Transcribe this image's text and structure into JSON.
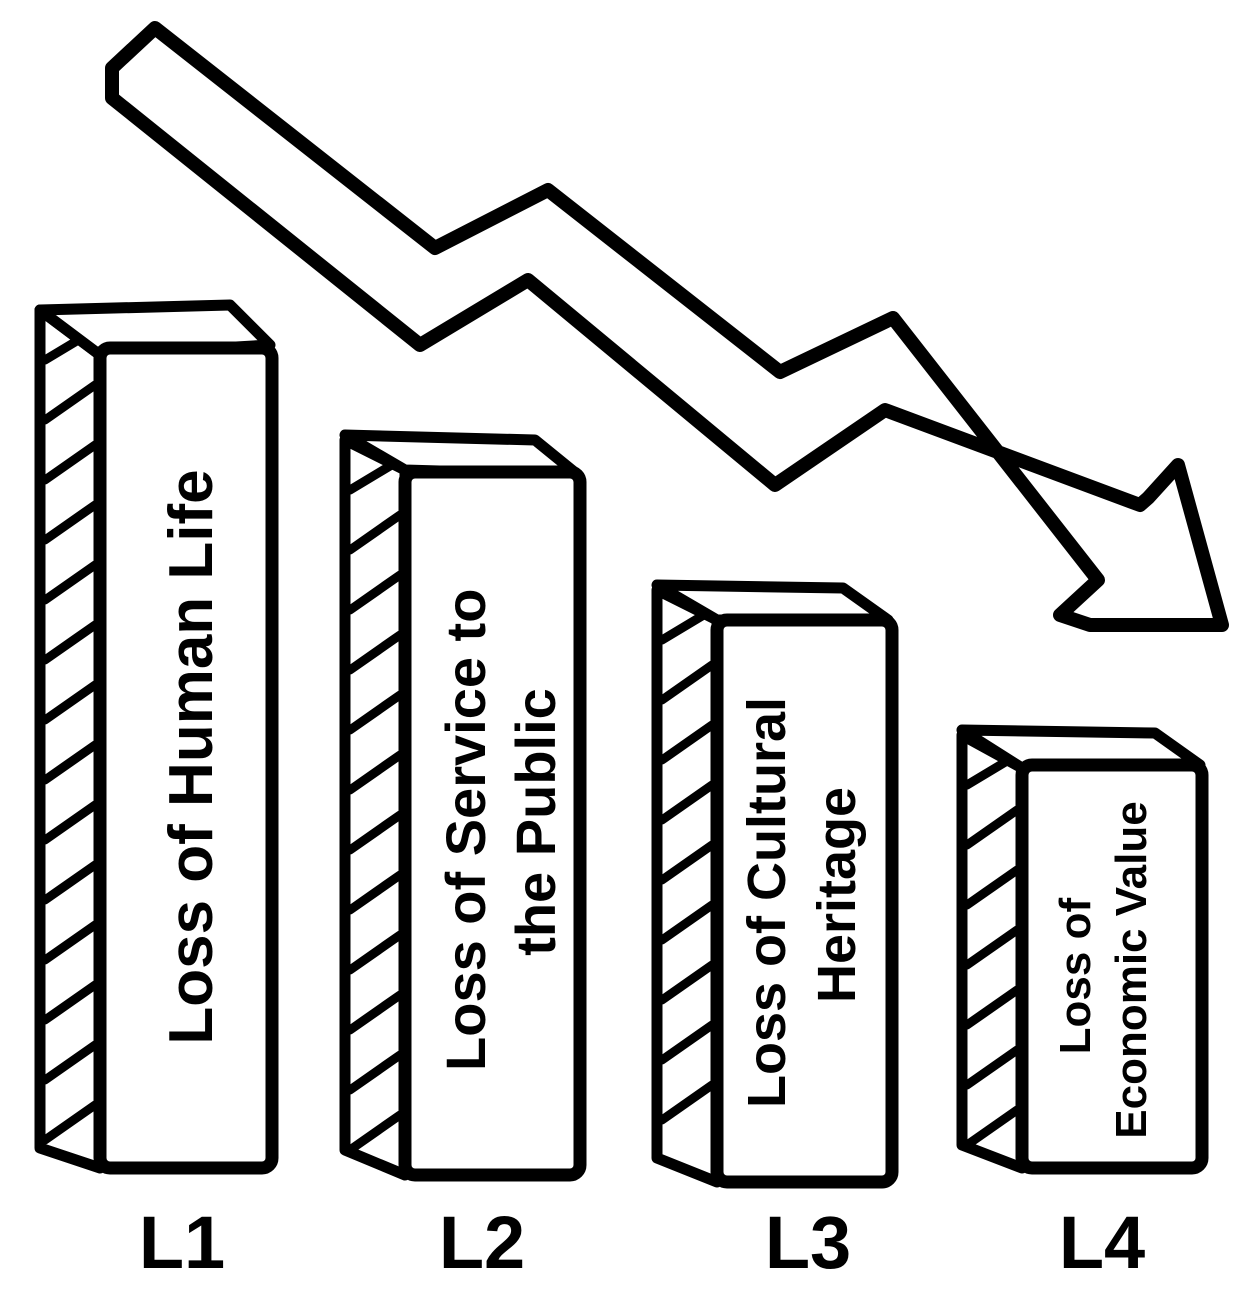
{
  "diagram": {
    "trend": "decreasing",
    "arrow_direction": "down-right",
    "columns": [
      {
        "level": "L1",
        "lines": [
          "Loss of Human Life"
        ]
      },
      {
        "level": "L2",
        "lines": [
          "Loss of Service to",
          "the Public"
        ]
      },
      {
        "level": "L3",
        "lines": [
          "Loss of Cultural",
          "Heritage"
        ]
      },
      {
        "level": "L4",
        "lines": [
          "Loss of",
          "Economic Value"
        ]
      }
    ]
  }
}
